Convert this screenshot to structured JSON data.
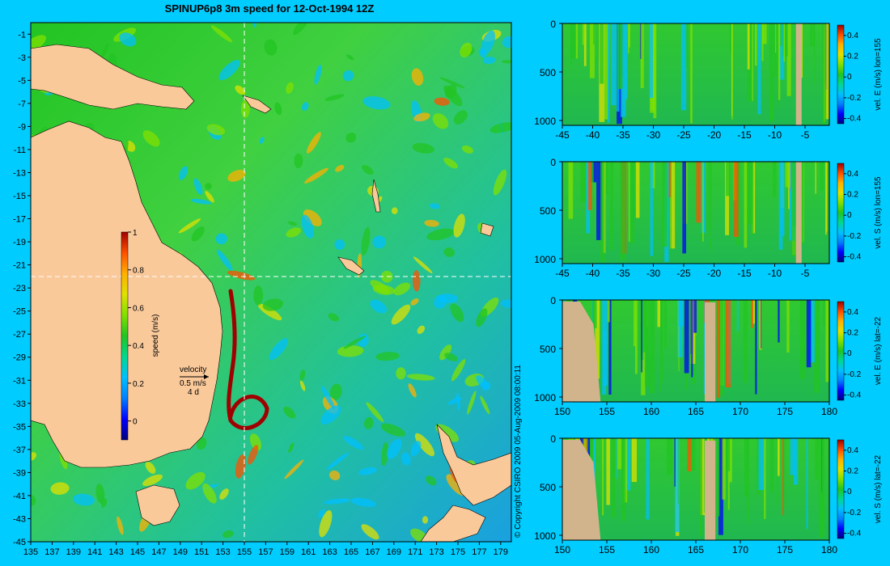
{
  "title": "SPINUP6p8 3m speed for 12-Oct-1994 12Z",
  "copyright": "© Copyright CSIRO 2009   05-Aug-2009 08:00:11",
  "colors": {
    "background": "#00ccff",
    "land": "#f9c99a",
    "seafloor": "#d2b48c",
    "colormap": [
      "#00007f",
      "#0000ff",
      "#0080ff",
      "#00c0ff",
      "#00d890",
      "#22c422",
      "#80e000",
      "#e0e000",
      "#ffb000",
      "#ff5000",
      "#a00000"
    ]
  },
  "chart_data": [
    {
      "type": "heatmap",
      "name": "map",
      "title": "SPINUP6p8 3m speed for 12-Oct-1994 12Z",
      "x_ticks": [
        "135",
        "137",
        "139",
        "141",
        "143",
        "145",
        "147",
        "149",
        "151",
        "153",
        "155",
        "157",
        "159",
        "161",
        "163",
        "165",
        "167",
        "169",
        "171",
        "173",
        "175",
        "177",
        "179"
      ],
      "y_ticks": [
        "-1",
        "-3",
        "-5",
        "-7",
        "-9",
        "-11",
        "-13",
        "-15",
        "-17",
        "-19",
        "-21",
        "-23",
        "-25",
        "-27",
        "-29",
        "-31",
        "-33",
        "-35",
        "-37",
        "-39",
        "-41",
        "-43",
        "-45"
      ],
      "xlim": [
        135,
        180
      ],
      "ylim": [
        -45,
        0
      ],
      "section_lines": {
        "lon": 155,
        "lat": -22
      },
      "colorbar": {
        "label": "speed (m/s)",
        "ticks": [
          "0",
          "0.2",
          "0.4",
          "0.6",
          "0.8",
          "1"
        ],
        "range": [
          -0.1,
          1
        ]
      },
      "velocity_key": {
        "label": "velocity",
        "speed": "0.5 m/s",
        "interval": "4 d"
      }
    },
    {
      "type": "heatmap",
      "name": "section-1",
      "x_ticks": [
        "-45",
        "-40",
        "-35",
        "-30",
        "-25",
        "-20",
        "-15",
        "-10",
        "-5"
      ],
      "y_ticks": [
        "0",
        "500",
        "1000"
      ],
      "xlim": [
        -45,
        -1
      ],
      "ylim": [
        1050,
        0
      ],
      "colorbar": {
        "label": "vel. E (m/s) lon=155",
        "ticks": [
          "0.4",
          "0.2",
          "0",
          "-0.2",
          "-0.4"
        ],
        "range": [
          -0.45,
          0.5
        ]
      }
    },
    {
      "type": "heatmap",
      "name": "section-2",
      "x_ticks": [
        "-45",
        "-40",
        "-35",
        "-30",
        "-25",
        "-20",
        "-15",
        "-10",
        "-5"
      ],
      "y_ticks": [
        "0",
        "500",
        "1000"
      ],
      "xlim": [
        -45,
        -1
      ],
      "ylim": [
        1050,
        0
      ],
      "colorbar": {
        "label": "vel. S (m/s) lon=155",
        "ticks": [
          "0.4",
          "0.2",
          "0",
          "-0.2",
          "-0.4"
        ],
        "range": [
          -0.45,
          0.5
        ]
      }
    },
    {
      "type": "heatmap",
      "name": "section-3",
      "x_ticks": [
        "150",
        "155",
        "160",
        "165",
        "170",
        "175",
        "180"
      ],
      "y_ticks": [
        "0",
        "500",
        "1000"
      ],
      "xlim": [
        150,
        180
      ],
      "ylim": [
        1050,
        0
      ],
      "colorbar": {
        "label": "vel. E (m/s) lat=-22",
        "ticks": [
          "0.4",
          "0.2",
          "0",
          "-0.2",
          "-0.4"
        ],
        "range": [
          -0.45,
          0.5
        ]
      }
    },
    {
      "type": "heatmap",
      "name": "section-4",
      "x_ticks": [
        "150",
        "155",
        "160",
        "165",
        "170",
        "175",
        "180"
      ],
      "y_ticks": [
        "0",
        "500",
        "1000"
      ],
      "xlim": [
        150,
        180
      ],
      "ylim": [
        1050,
        0
      ],
      "colorbar": {
        "label": "vel. S (m/s) lat=-22",
        "ticks": [
          "0.4",
          "0.2",
          "0",
          "-0.2",
          "-0.4"
        ],
        "range": [
          -0.45,
          0.5
        ]
      }
    }
  ]
}
